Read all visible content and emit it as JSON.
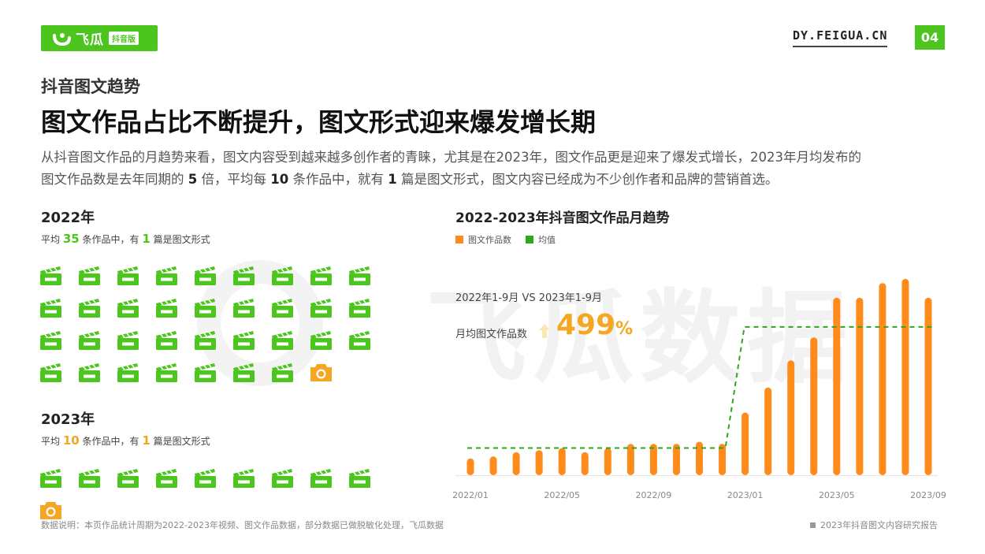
{
  "header": {
    "logo_name": "飞瓜",
    "logo_sub": "抖音版",
    "site": "DY.FEIGUA.CN",
    "page_number": "04"
  },
  "section_title": "抖音图文趋势",
  "headline": "图文作品占比不断提升，图文形式迎来爆发增长期",
  "summary": {
    "p1": "从抖音图文作品的月趋势来看，图文内容受到越来越多创作者的青睐，尤其是在2023年，图文作品更是迎来了爆发式增长，2023年月均发布的",
    "p2a": "图文作品数是去年同期的",
    "n1": "5",
    "p2b": "倍，平均每",
    "n2": "10",
    "p2c": "条作品中，就有",
    "n3": "1",
    "p2d": "篇是图文形式，图文内容已经成为不少创作者和品牌的营销首选。"
  },
  "year2022": {
    "title": "2022年",
    "avg_prefix": "平均",
    "avg_count": "35",
    "avg_mid": "条作品中，有",
    "avg_one": "1",
    "avg_suffix": "篇是图文形式",
    "video_icons": 34,
    "photo_icons": 1
  },
  "year2023": {
    "title": "2023年",
    "avg_prefix": "平均",
    "avg_count": "10",
    "avg_mid": "条作品中，有",
    "avg_one": "1",
    "avg_suffix": "篇是图文形式",
    "video_icons": 9,
    "photo_icons": 1
  },
  "chart_annotations": {
    "compare": "2022年1-9月 VS 2023年1-9月",
    "monthly_avg_label": "月均图文作品数",
    "growth_value": "499",
    "growth_unit": "%"
  },
  "watermark": "飞瓜数据",
  "colors": {
    "brand_green": "#4cc51e",
    "bar_orange": "#ff8c1a",
    "avg_green": "#2ea81a",
    "growth_gold": "#f5a623"
  },
  "chart_data": {
    "type": "bar",
    "title": "2022-2023年抖音图文作品月趋势",
    "categories": [
      "2022/01",
      "2022/02",
      "2022/03",
      "2022/04",
      "2022/05",
      "2022/06",
      "2022/07",
      "2022/08",
      "2022/09",
      "2022/10",
      "2022/11",
      "2022/12",
      "2023/01",
      "2023/02",
      "2023/03",
      "2023/04",
      "2023/05",
      "2023/06",
      "2023/07",
      "2023/08",
      "2023/09"
    ],
    "tick_labels": [
      "2022/01",
      "2022/05",
      "2022/09",
      "2023/01",
      "2023/05",
      "2023/09"
    ],
    "series": [
      {
        "name": "图文作品数",
        "type": "bar",
        "values": [
          8,
          9,
          11,
          12,
          13,
          11,
          13,
          15,
          15,
          15,
          16,
          15,
          30,
          42,
          55,
          66,
          85,
          85,
          92,
          94,
          85
        ]
      },
      {
        "name": "均值",
        "type": "step-dashed",
        "values": [
          13,
          13,
          13,
          13,
          13,
          13,
          13,
          13,
          13,
          13,
          13,
          13,
          71,
          71,
          71,
          71,
          71,
          71,
          71,
          71,
          71
        ]
      }
    ],
    "ylim": [
      0,
      100
    ],
    "grid": false,
    "legend_position": "top-left",
    "y_axis_visible": false
  },
  "footer": {
    "note": "数据说明：本页作品统计周期为2022-2023年视频、图文作品数据，部分数据已做脱敏化处理，飞瓜数据",
    "report": "2023年抖音图文内容研究报告"
  }
}
